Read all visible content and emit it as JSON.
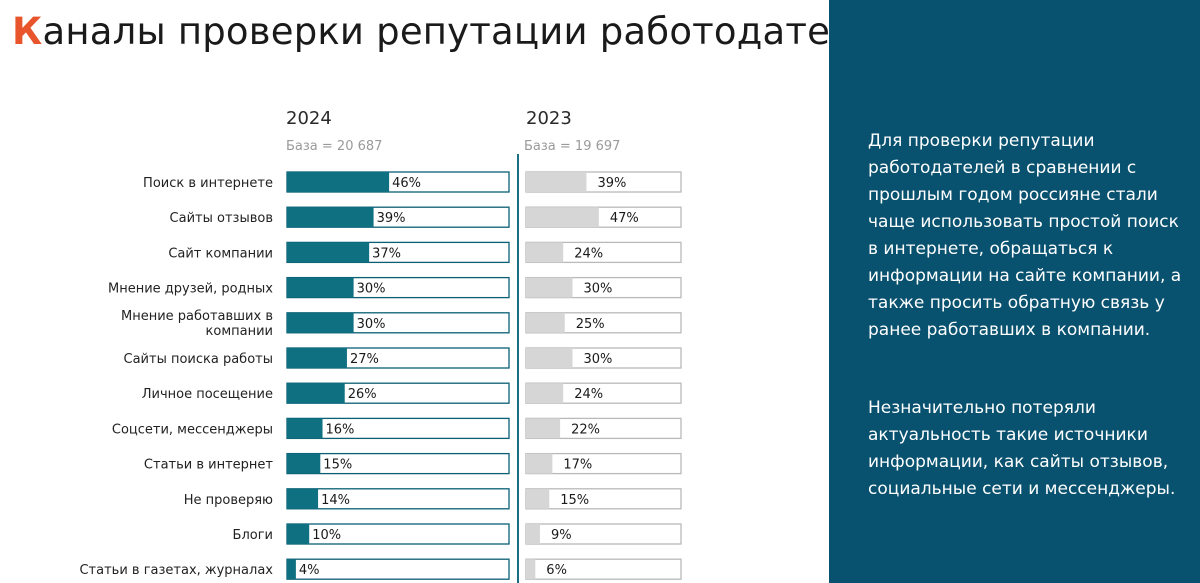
{
  "title": {
    "first_letter": "К",
    "rest": "аналы проверки репутации работодателей"
  },
  "columns": [
    {
      "year": "2024",
      "base": "База  = 20 687"
    },
    {
      "year": "2023",
      "base": "База  = 19 697"
    }
  ],
  "chart_data": {
    "type": "bar",
    "orientation": "horizontal",
    "categories": [
      "Поиск в интернете",
      "Сайты отзывов",
      "Сайт компании",
      "Мнение друзей, родных",
      "Мнение работавших в компании",
      "Сайты поиска работы",
      "Личное посещение",
      "Соцсети, мессенджеры",
      "Статьи в интернет",
      "Не проверяю",
      "Блоги",
      "Статьи в газетах, журналах"
    ],
    "category_lines": [
      [
        "Поиск в интернете"
      ],
      [
        "Сайты отзывов"
      ],
      [
        "Сайт компании"
      ],
      [
        "Мнение друзей, родных"
      ],
      [
        "Мнение работавших в",
        "компании"
      ],
      [
        "Сайты поиска работы"
      ],
      [
        "Личное посещение"
      ],
      [
        "Соцсети, мессенджеры"
      ],
      [
        "Статьи в интернет"
      ],
      [
        "Не проверяю"
      ],
      [
        "Блоги"
      ],
      [
        "Статьи в газетах, журналах"
      ]
    ],
    "series": [
      {
        "name": "2024",
        "color": "#0e7080",
        "values": [
          46,
          39,
          37,
          30,
          30,
          27,
          26,
          16,
          15,
          14,
          10,
          4
        ]
      },
      {
        "name": "2023",
        "color": "#d6d6d6",
        "values": [
          39,
          47,
          24,
          30,
          25,
          30,
          24,
          22,
          17,
          15,
          9,
          6
        ]
      }
    ],
    "unit": "%",
    "xlim": [
      0,
      100
    ]
  },
  "panel": {
    "paragraph1": "Для проверки репутации работодателей в сравнении с прошлым годом россияне стали чаще использовать простой поиск в интернете, обращаться к информации на сайте компании, а также просить обратную связь у ранее работавших в компании.",
    "paragraph2": "Незначительно потеряли актуальность такие источники информации, как сайты отзывов, социальные сети и мессенджеры."
  },
  "colors": {
    "accent": "#e8542b",
    "panel_bg": "#08516f",
    "bar_2024": "#0e7080",
    "bar_2023": "#d6d6d6",
    "bar_outline": "#0b5f75",
    "bar_outline_2023": "#b9b9b9"
  }
}
